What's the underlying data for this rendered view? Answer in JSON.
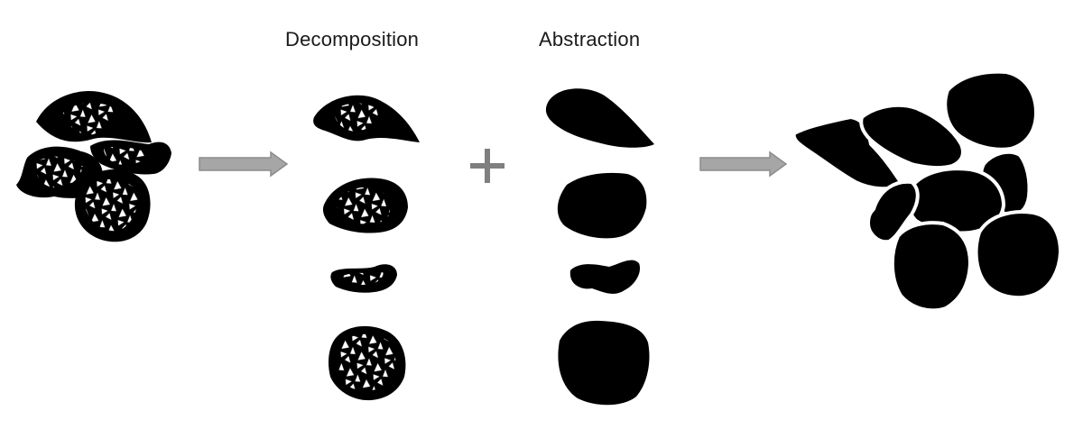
{
  "labels": {
    "decomposition": "Decomposition",
    "abstraction": "Abstraction"
  },
  "colors": {
    "shape_fill": "#000000",
    "pattern_light": "#ffffff",
    "arrow_fill": "#a6a6a6",
    "arrow_stroke": "#8c8c8c",
    "plus": "#7f7f7f"
  },
  "operators": {
    "arrow_1": "right-arrow-icon",
    "plus": "plus-icon",
    "arrow_2": "right-arrow-icon"
  }
}
